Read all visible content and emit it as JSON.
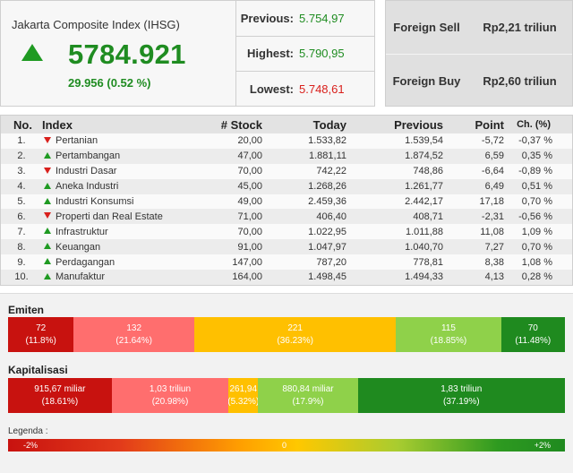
{
  "index": {
    "title": "Jakarta Composite Index (IHSG)",
    "value": "5784.921",
    "change": "29.956 (0.52 %)",
    "direction": "up"
  },
  "stats": {
    "previous_label": "Previous:",
    "previous_value": "5.754,97",
    "highest_label": "Highest:",
    "highest_value": "5.790,95",
    "lowest_label": "Lowest:",
    "lowest_value": "5.748,61"
  },
  "foreign": {
    "sell_label": "Foreign Sell",
    "sell_value": "Rp2,21 triliun",
    "buy_label": "Foreign Buy",
    "buy_value": "Rp2,60 triliun"
  },
  "table": {
    "headers": {
      "no": "No.",
      "index": "Index",
      "stock": "# Stock",
      "today": "Today",
      "previous": "Previous",
      "point": "Point",
      "ch": "Ch. (%)"
    },
    "rows": [
      {
        "no": "1.",
        "dir": "down",
        "name": "Pertanian",
        "stock": "20,00",
        "today": "1.533,82",
        "previous": "1.539,54",
        "point": "-5,72",
        "ch": "-0,37 %"
      },
      {
        "no": "2.",
        "dir": "up",
        "name": "Pertambangan",
        "stock": "47,00",
        "today": "1.881,11",
        "previous": "1.874,52",
        "point": "6,59",
        "ch": "0,35 %"
      },
      {
        "no": "3.",
        "dir": "down",
        "name": "Industri Dasar",
        "stock": "70,00",
        "today": "742,22",
        "previous": "748,86",
        "point": "-6,64",
        "ch": "-0,89 %"
      },
      {
        "no": "4.",
        "dir": "up",
        "name": "Aneka Industri",
        "stock": "45,00",
        "today": "1.268,26",
        "previous": "1.261,77",
        "point": "6,49",
        "ch": "0,51 %"
      },
      {
        "no": "5.",
        "dir": "up",
        "name": "Industri Konsumsi",
        "stock": "49,00",
        "today": "2.459,36",
        "previous": "2.442,17",
        "point": "17,18",
        "ch": "0,70 %"
      },
      {
        "no": "6.",
        "dir": "down",
        "name": "Properti dan Real Estate",
        "stock": "71,00",
        "today": "406,40",
        "previous": "408,71",
        "point": "-2,31",
        "ch": "-0,56 %"
      },
      {
        "no": "7.",
        "dir": "up",
        "name": "Infrastruktur",
        "stock": "70,00",
        "today": "1.022,95",
        "previous": "1.011,88",
        "point": "11,08",
        "ch": "1,09 %"
      },
      {
        "no": "8.",
        "dir": "up",
        "name": "Keuangan",
        "stock": "91,00",
        "today": "1.047,97",
        "previous": "1.040,70",
        "point": "7,27",
        "ch": "0,70 %"
      },
      {
        "no": "9.",
        "dir": "up",
        "name": "Perdagangan",
        "stock": "147,00",
        "today": "787,20",
        "previous": "778,81",
        "point": "8,38",
        "ch": "1,08 %"
      },
      {
        "no": "10.",
        "dir": "up",
        "name": "Manufaktur",
        "stock": "164,00",
        "today": "1.498,45",
        "previous": "1.494,33",
        "point": "4,13",
        "ch": "0,28 %"
      }
    ]
  },
  "emiten": {
    "title": "Emiten",
    "segments": [
      {
        "value": "72",
        "pct": "(11.8%)",
        "share": 11.8,
        "tone": "dr"
      },
      {
        "value": "132",
        "pct": "(21.64%)",
        "share": 21.64,
        "tone": "lr"
      },
      {
        "value": "221",
        "pct": "(36.23%)",
        "share": 36.23,
        "tone": "y"
      },
      {
        "value": "115",
        "pct": "(18.85%)",
        "share": 18.85,
        "tone": "lg"
      },
      {
        "value": "70",
        "pct": "(11.48%)",
        "share": 11.48,
        "tone": "dg"
      }
    ]
  },
  "kapitalisasi": {
    "title": "Kapitalisasi",
    "segments": [
      {
        "value": "915,67 miliar",
        "pct": "(18.61%)",
        "share": 18.61,
        "tone": "dr"
      },
      {
        "value": "1,03 triliun",
        "pct": "(20.98%)",
        "share": 20.98,
        "tone": "lr"
      },
      {
        "value": "261,94",
        "pct": "(5.32%)",
        "share": 5.32,
        "tone": "y"
      },
      {
        "value": "880,84 miliar",
        "pct": "(17.9%)",
        "share": 17.9,
        "tone": "lg"
      },
      {
        "value": "1,83 triliun",
        "pct": "(37.19%)",
        "share": 37.19,
        "tone": "dg"
      }
    ]
  },
  "legend": {
    "title": "Legenda :",
    "min": "-2%",
    "mid": "0",
    "max": "+2%"
  }
}
